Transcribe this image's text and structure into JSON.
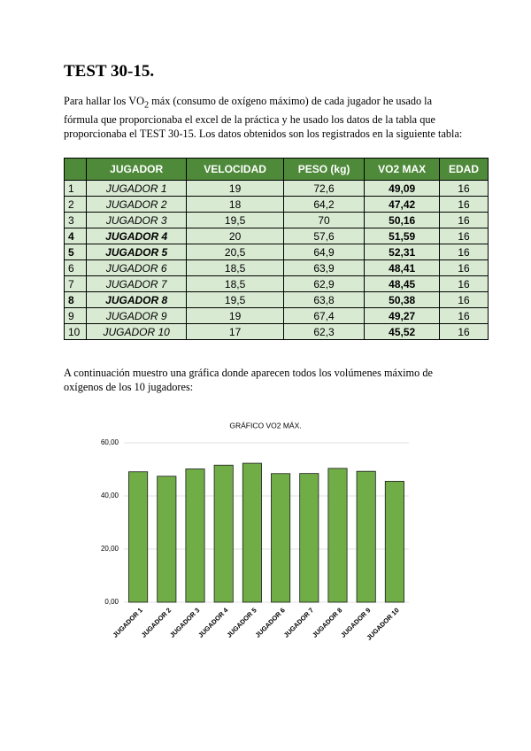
{
  "title": "TEST 30-15.",
  "intro": {
    "before": "Para hallar los VO",
    "sub": "2",
    "after": " máx (consumo de oxígeno máximo) de cada jugador he usado la fórmula que proporcionaba el excel de la práctica y he usado los datos de la tabla que proporcionaba el TEST 30-15. Los datos obtenidos son los registrados en la siguiente tabla:"
  },
  "table": {
    "header": [
      "JUGADOR",
      "VELOCIDAD",
      "PESO (kg)",
      "VO2 MAX",
      "EDAD"
    ],
    "rows": [
      [
        "1",
        "JUGADOR 1",
        "19",
        "72,6",
        "49,09",
        "16"
      ],
      [
        "2",
        "JUGADOR 2",
        "18",
        "64,2",
        "47,42",
        "16"
      ],
      [
        "3",
        "JUGADOR 3",
        "19,5",
        "70",
        "50,16",
        "16"
      ],
      [
        "4",
        "JUGADOR 4",
        "20",
        "57,6",
        "51,59",
        "16"
      ],
      [
        "5",
        "JUGADOR 5",
        "20,5",
        "64,9",
        "52,31",
        "16"
      ],
      [
        "6",
        "JUGADOR 6",
        "18,5",
        "63,9",
        "48,41",
        "16"
      ],
      [
        "7",
        "JUGADOR 7",
        "18,5",
        "62,9",
        "48,45",
        "16"
      ],
      [
        "8",
        "JUGADOR 8",
        "19,5",
        "63,8",
        "50,38",
        "16"
      ],
      [
        "9",
        "JUGADOR 9",
        "19",
        "67,4",
        "49,27",
        "16"
      ],
      [
        "10",
        "JUGADOR 10",
        "17",
        "62,3",
        "45,52",
        "16"
      ]
    ]
  },
  "outro": "A continuación muestro una gráfica donde aparecen todos los volúmenes máximo de oxígenos de los 10 jugadores:",
  "chart_data": {
    "type": "bar",
    "title": "GRÁFICO VO2 MÁX.",
    "categories": [
      "JUGADOR 1",
      "JUGADOR 2",
      "JUGADOR 3",
      "JUGADOR 4",
      "JUGADOR 5",
      "JUGADOR 6",
      "JUGADOR 7",
      "JUGADOR 8",
      "JUGADOR 9",
      "JUGADOR 10"
    ],
    "values": [
      49.09,
      47.42,
      50.16,
      51.59,
      52.31,
      48.41,
      48.45,
      50.38,
      49.27,
      45.52
    ],
    "color": "#70ad47",
    "ylim": [
      0,
      60
    ],
    "yticks": [
      {
        "value": 0,
        "label": "0,00"
      },
      {
        "value": 20,
        "label": "20,00"
      },
      {
        "value": 40,
        "label": "40,00"
      },
      {
        "value": 60,
        "label": "60,00"
      }
    ],
    "grid": true
  }
}
